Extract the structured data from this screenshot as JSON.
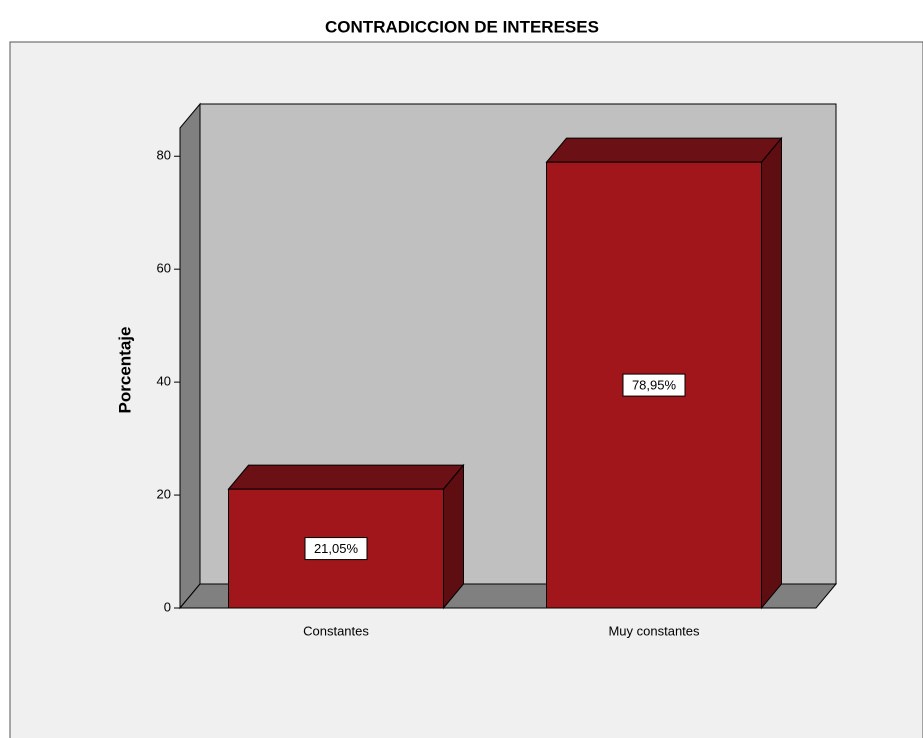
{
  "chart_data": {
    "type": "bar",
    "title": "CONTRADICCION DE INTERESES",
    "y_label": "Porcentaje",
    "categories": [
      "Constantes",
      "Muy constantes"
    ],
    "values": [
      21.05,
      78.95
    ],
    "value_labels": [
      "21,05%",
      "78,95%"
    ],
    "color": "#a0161a",
    "ylim": [
      0,
      85
    ],
    "yticks": [
      0,
      20,
      40,
      60,
      80
    ]
  }
}
